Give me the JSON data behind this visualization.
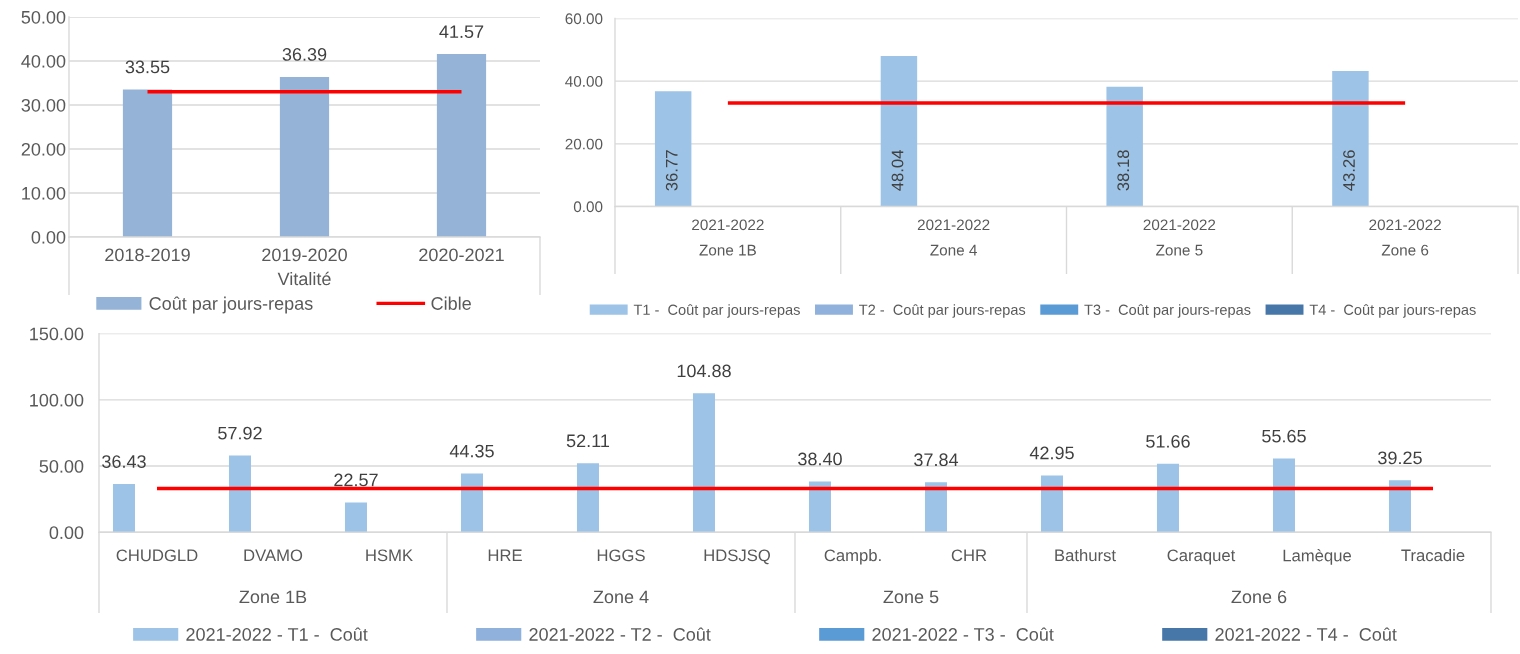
{
  "chart_data": [
    {
      "type": "bar",
      "categories": [
        "2018-2019",
        "2019-2020",
        "2020-2021"
      ],
      "xlabel": "Vitalité",
      "series": [
        {
          "name": "Coût par jours-repas",
          "color": "#95b3d7",
          "values": [
            33.55,
            36.39,
            41.57
          ],
          "value_labels": [
            "33.55",
            "36.39",
            "41.57"
          ]
        },
        {
          "name": "Cible",
          "type": "line",
          "color": "#ff0000",
          "values": [
            33,
            33,
            33
          ]
        }
      ],
      "ylim": [
        0,
        50
      ],
      "yticks": [
        {
          "value": 0,
          "label": "0.00"
        },
        {
          "value": 10,
          "label": "10.00"
        },
        {
          "value": 20,
          "label": "20.00"
        },
        {
          "value": 30,
          "label": "30.00"
        },
        {
          "value": 40,
          "label": "40.00"
        },
        {
          "value": 50,
          "label": "50.00"
        }
      ],
      "grid": "y",
      "legend": "bottom"
    },
    {
      "type": "bar",
      "categories": [
        "2021-2022\nZone 1B",
        "2021-2022\nZone 4",
        "2021-2022\nZone 5",
        "2021-2022\nZone 6"
      ],
      "series": [
        {
          "name": "T1 -  Coût par jours-repas",
          "color": "#9dc3e6",
          "values": [
            36.77,
            48.04,
            38.18,
            43.26
          ],
          "value_labels": [
            "36.77",
            "48.04",
            "38.18",
            "43.26"
          ]
        },
        {
          "name": "T2 -  Coût par jours-repas",
          "color": "#8fb1dc",
          "values": [
            null,
            null,
            null,
            null
          ]
        },
        {
          "name": "T3 -  Coût par jours-repas",
          "color": "#5b9bd5",
          "values": [
            null,
            null,
            null,
            null
          ]
        },
        {
          "name": "T4 -  Coût par jours-repas",
          "color": "#4677a8",
          "values": [
            null,
            null,
            null,
            null
          ]
        },
        {
          "type": "line",
          "color": "#ff0000",
          "values": [
            33,
            33,
            33,
            33
          ]
        }
      ],
      "ylim": [
        0,
        60
      ],
      "yticks": [
        {
          "value": 0,
          "label": "0.00"
        },
        {
          "value": 20,
          "label": "20.00"
        },
        {
          "value": 40,
          "label": "40.00"
        },
        {
          "value": 60,
          "label": "60.00"
        }
      ],
      "grid": "y",
      "legend": "bottom"
    },
    {
      "type": "bar",
      "categories": [
        "CHUDGLD",
        "DVAMO",
        "HSMK",
        "HRE",
        "HGGS",
        "HDSJSQ",
        "Campb.",
        "CHR",
        "Bathurst",
        "Caraquet",
        "Lamèque",
        "Tracadie"
      ],
      "annotations": [
        "Zone 1B",
        "Zone 4",
        "Zone 5",
        "Zone 6"
      ],
      "series": [
        {
          "name": "2021-2022 - T1 -  Coût",
          "color": "#9dc3e6",
          "values": [
            36.43,
            57.92,
            22.57,
            44.35,
            52.11,
            104.88,
            38.4,
            37.84,
            42.95,
            51.66,
            55.65,
            39.25
          ],
          "value_labels": [
            "36.43",
            "57.92",
            "22.57",
            "44.35",
            "52.11",
            "104.88",
            "38.40",
            "37.84",
            "42.95",
            "51.66",
            "55.65",
            "39.25"
          ]
        },
        {
          "name": "2021-2022 - T2 -  Coût",
          "color": "#8fb1dc",
          "values": [
            null,
            null,
            null,
            null,
            null,
            null,
            null,
            null,
            null,
            null,
            null,
            null
          ]
        },
        {
          "name": "2021-2022 - T3 -  Coût",
          "color": "#5b9bd5",
          "values": [
            null,
            null,
            null,
            null,
            null,
            null,
            null,
            null,
            null,
            null,
            null,
            null
          ]
        },
        {
          "name": "2021-2022 - T4 -  Coût",
          "color": "#4677a8",
          "values": [
            null,
            null,
            null,
            null,
            null,
            null,
            null,
            null,
            null,
            null,
            null,
            null
          ]
        },
        {
          "type": "line",
          "color": "#ff0000",
          "values": [
            33,
            33,
            33,
            33,
            33,
            33,
            33,
            33,
            33,
            33,
            33,
            33
          ]
        }
      ],
      "ylim": [
        0,
        150
      ],
      "yticks": [
        {
          "value": 0,
          "label": "0.00"
        },
        {
          "value": 50,
          "label": "50.00"
        },
        {
          "value": 100,
          "label": "100.00"
        },
        {
          "value": 150,
          "label": "150.00"
        }
      ],
      "grid": "y",
      "legend": "bottom"
    }
  ]
}
